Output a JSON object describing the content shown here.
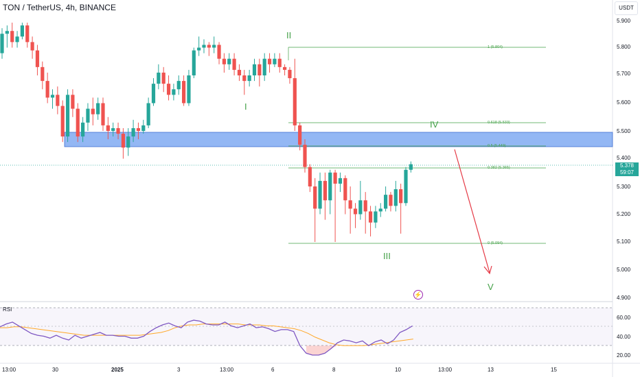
{
  "header": {
    "symbol_title": "TON / TetherUS, 4h, BINANCE"
  },
  "price_axis": {
    "currency_button": "USDT",
    "labels": [
      "5.900",
      "5.800",
      "5.700",
      "5.600",
      "5.500",
      "5.400",
      "5.300",
      "5.200",
      "5.100",
      "5.000",
      "4.900"
    ]
  },
  "last_price": {
    "price": "5.378",
    "countdown": "59:07"
  },
  "rsi_axis": {
    "labels": [
      "60.00",
      "40.00",
      "20.00"
    ]
  },
  "time_axis": {
    "labels": [
      "13:00",
      "30",
      "2025",
      "3",
      "13:00",
      "6",
      "8",
      "10",
      "13:00",
      "13",
      "15"
    ]
  },
  "waves": {
    "w1": "I",
    "w2": "II",
    "w3": "III",
    "w4": "IV",
    "w5": "V"
  },
  "fib": {
    "f1": "1 (5.804)",
    "f0618": "0.618 (5.533)",
    "f05": "0.5 (5.449)",
    "f0382": "0.382 (5.365)",
    "f0": "0 (5.094)"
  },
  "indicator": {
    "name": "RSI"
  },
  "colors": {
    "bull": "#26a69a",
    "bear": "#ef5350",
    "fib": "#43a047",
    "zone": "#6f9ff0",
    "rsi": "#7e57c2",
    "rsi_ma": "#ffa726",
    "arrow": "#e53945"
  },
  "candles": [
    [
      5.78,
      5.85,
      5.87,
      5.76
    ],
    [
      5.85,
      5.86,
      5.88,
      5.8
    ],
    [
      5.86,
      5.82,
      5.89,
      5.8
    ],
    [
      5.82,
      5.84,
      5.86,
      5.8
    ],
    [
      5.84,
      5.88,
      5.89,
      5.83
    ],
    [
      5.88,
      5.82,
      5.89,
      5.8
    ],
    [
      5.82,
      5.79,
      5.84,
      5.76
    ],
    [
      5.79,
      5.73,
      5.81,
      5.7
    ],
    [
      5.73,
      5.68,
      5.75,
      5.65
    ],
    [
      5.68,
      5.62,
      5.71,
      5.6
    ],
    [
      5.62,
      5.63,
      5.65,
      5.58
    ],
    [
      5.63,
      5.59,
      5.66,
      5.56
    ],
    [
      5.59,
      5.48,
      5.61,
      5.46
    ],
    [
      5.48,
      5.63,
      5.65,
      5.46
    ],
    [
      5.63,
      5.58,
      5.65,
      5.55
    ],
    [
      5.58,
      5.48,
      5.6,
      5.46
    ],
    [
      5.48,
      5.53,
      5.55,
      5.46
    ],
    [
      5.53,
      5.58,
      5.6,
      5.5
    ],
    [
      5.58,
      5.56,
      5.62,
      5.52
    ],
    [
      5.56,
      5.6,
      5.62,
      5.54
    ],
    [
      5.6,
      5.52,
      5.62,
      5.5
    ],
    [
      5.52,
      5.5,
      5.55,
      5.47
    ],
    [
      5.5,
      5.51,
      5.53,
      5.48
    ],
    [
      5.51,
      5.49,
      5.53,
      5.47
    ],
    [
      5.49,
      5.44,
      5.51,
      5.4
    ],
    [
      5.44,
      5.48,
      5.51,
      5.41
    ],
    [
      5.48,
      5.51,
      5.54,
      5.46
    ],
    [
      5.51,
      5.5,
      5.53,
      5.47
    ],
    [
      5.5,
      5.52,
      5.54,
      5.49
    ],
    [
      5.52,
      5.6,
      5.62,
      5.51
    ],
    [
      5.6,
      5.67,
      5.69,
      5.59
    ],
    [
      5.67,
      5.71,
      5.74,
      5.65
    ],
    [
      5.71,
      5.67,
      5.73,
      5.64
    ],
    [
      5.67,
      5.63,
      5.7,
      5.61
    ],
    [
      5.63,
      5.65,
      5.67,
      5.61
    ],
    [
      5.65,
      5.68,
      5.7,
      5.63
    ],
    [
      5.68,
      5.6,
      5.7,
      5.59
    ],
    [
      5.6,
      5.7,
      5.72,
      5.59
    ],
    [
      5.7,
      5.79,
      5.8,
      5.69
    ],
    [
      5.79,
      5.8,
      5.84,
      5.77
    ],
    [
      5.8,
      5.81,
      5.83,
      5.78
    ],
    [
      5.81,
      5.8,
      5.82,
      5.77
    ],
    [
      5.8,
      5.81,
      5.84,
      5.78
    ],
    [
      5.81,
      5.76,
      5.82,
      5.74
    ],
    [
      5.76,
      5.74,
      5.78,
      5.71
    ],
    [
      5.74,
      5.76,
      5.78,
      5.72
    ],
    [
      5.76,
      5.72,
      5.78,
      5.7
    ],
    [
      5.72,
      5.7,
      5.74,
      5.68
    ],
    [
      5.7,
      5.68,
      5.72,
      5.63
    ],
    [
      5.68,
      5.7,
      5.72,
      5.66
    ],
    [
      5.7,
      5.74,
      5.76,
      5.68
    ],
    [
      5.74,
      5.7,
      5.76,
      5.66
    ],
    [
      5.7,
      5.76,
      5.78,
      5.68
    ],
    [
      5.76,
      5.74,
      5.78,
      5.71
    ],
    [
      5.74,
      5.76,
      5.78,
      5.73
    ],
    [
      5.76,
      5.73,
      5.78,
      5.71
    ],
    [
      5.73,
      5.72,
      5.74,
      5.7
    ],
    [
      5.72,
      5.69,
      5.73,
      5.67
    ],
    [
      5.69,
      5.52,
      5.76,
      5.5
    ],
    [
      5.52,
      5.45,
      5.53,
      5.43
    ],
    [
      5.45,
      5.37,
      5.47,
      5.35
    ],
    [
      5.37,
      5.3,
      5.38,
      5.28
    ],
    [
      5.3,
      5.22,
      5.33,
      5.1
    ],
    [
      5.22,
      5.32,
      5.35,
      5.2
    ],
    [
      5.32,
      5.25,
      5.35,
      5.18
    ],
    [
      5.25,
      5.35,
      5.36,
      5.2
    ],
    [
      5.35,
      5.31,
      5.36,
      5.1
    ],
    [
      5.31,
      5.33,
      5.35,
      5.28
    ],
    [
      5.33,
      5.25,
      5.34,
      5.2
    ],
    [
      5.25,
      5.22,
      5.3,
      5.13
    ],
    [
      5.22,
      5.2,
      5.24,
      5.15
    ],
    [
      5.2,
      5.25,
      5.32,
      5.18
    ],
    [
      5.25,
      5.21,
      5.28,
      5.13
    ],
    [
      5.21,
      5.17,
      5.23,
      5.12
    ],
    [
      5.17,
      5.21,
      5.23,
      5.15
    ],
    [
      5.21,
      5.22,
      5.24,
      5.19
    ],
    [
      5.22,
      5.27,
      5.3,
      5.21
    ],
    [
      5.27,
      5.23,
      5.28,
      5.21
    ],
    [
      5.23,
      5.29,
      5.32,
      5.21
    ],
    [
      5.29,
      5.24,
      5.31,
      5.13
    ],
    [
      5.24,
      5.36,
      5.37,
      5.23
    ],
    [
      5.36,
      5.38,
      5.39,
      5.35
    ]
  ],
  "rsi": [
    50,
    53,
    55,
    51,
    47,
    43,
    41,
    40,
    38,
    41,
    38,
    36,
    41,
    38,
    40,
    42,
    44,
    41,
    41,
    40,
    40,
    38,
    38,
    40,
    45,
    49,
    52,
    54,
    51,
    49,
    55,
    57,
    56,
    53,
    52,
    52,
    55,
    51,
    49,
    51,
    53,
    49,
    50,
    48,
    45,
    47,
    47,
    45,
    30,
    22,
    20,
    20,
    22,
    27,
    33,
    36,
    35,
    33,
    35,
    30,
    34,
    36,
    32,
    36,
    44,
    47,
    51
  ],
  "rsi_ma": [
    49,
    49,
    50,
    50,
    49,
    48,
    47,
    46,
    45,
    44,
    43,
    42,
    41,
    41,
    41,
    41,
    41,
    41,
    41,
    41,
    41,
    42,
    43,
    44,
    46,
    49,
    51,
    52,
    52,
    53,
    53,
    53,
    53,
    53,
    53,
    52,
    52,
    52,
    51,
    51,
    50,
    49,
    48,
    46,
    43,
    39,
    36,
    33,
    31,
    30,
    30,
    30,
    30,
    31,
    32,
    33,
    34,
    35,
    36,
    37
  ]
}
